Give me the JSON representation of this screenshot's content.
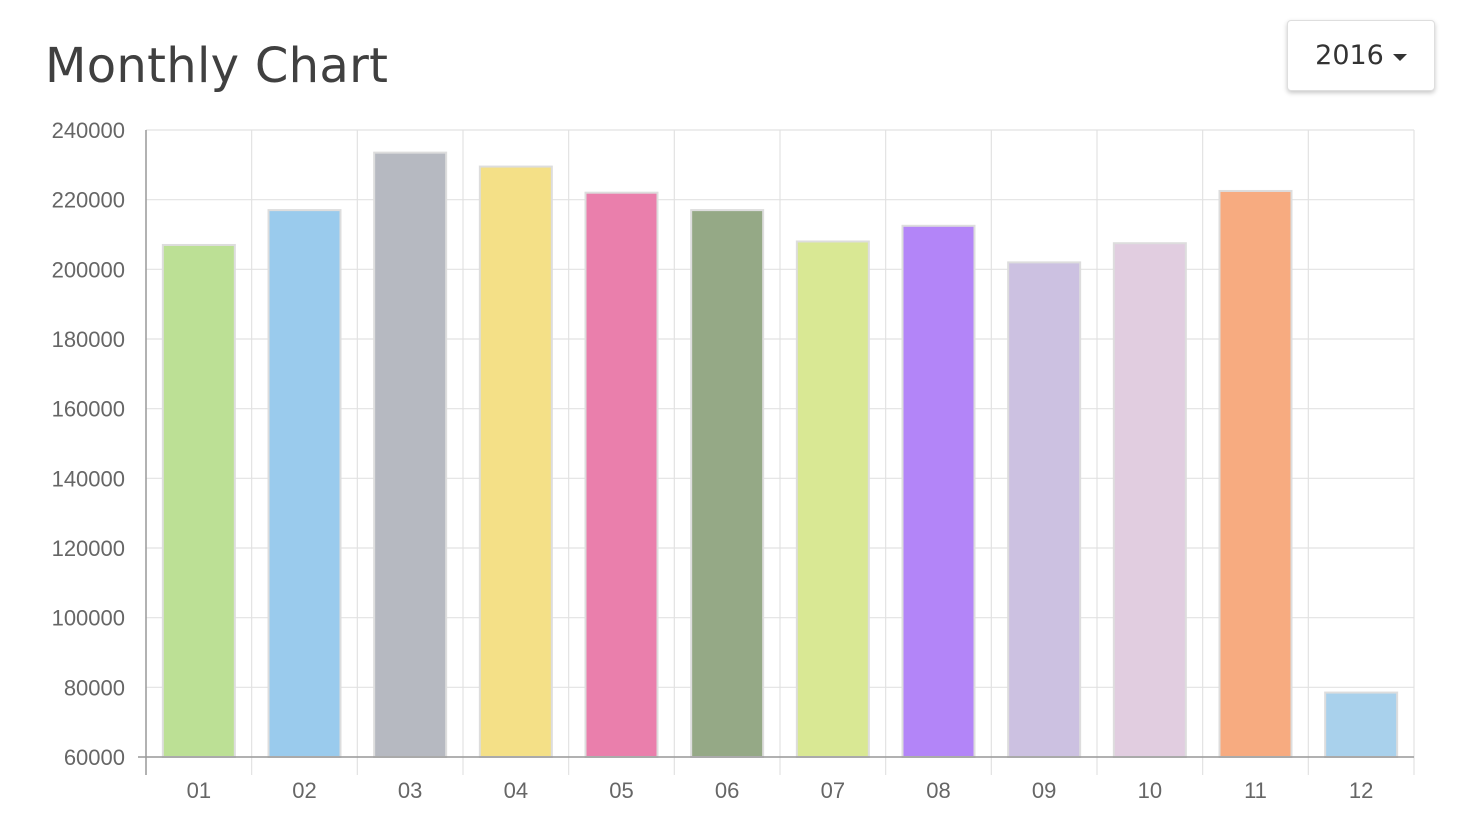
{
  "page": {
    "title": "Monthly Chart"
  },
  "year_select": {
    "selected": "2016"
  },
  "chart_data": {
    "type": "bar",
    "title": "",
    "xlabel": "",
    "ylabel": "",
    "categories": [
      "01",
      "02",
      "03",
      "04",
      "05",
      "06",
      "07",
      "08",
      "09",
      "10",
      "11",
      "12"
    ],
    "values": [
      207000,
      217000,
      233500,
      229500,
      222000,
      217000,
      208000,
      212500,
      202000,
      207500,
      222500,
      78500
    ],
    "ylim": [
      60000,
      240000
    ],
    "yticks": [
      60000,
      80000,
      100000,
      120000,
      140000,
      160000,
      180000,
      200000,
      220000,
      240000
    ],
    "grid": true,
    "legend": "none",
    "colors": [
      "#bce095",
      "#9acbed",
      "#b6b9c1",
      "#f4e087",
      "#ea7fac",
      "#95a986",
      "#d9e894",
      "#b385f8",
      "#ccc1e1",
      "#e1cde0",
      "#f7ab80",
      "#a9d1ec"
    ],
    "bar_border_color": "#dddddd",
    "grid_color": "#e2e2e2",
    "axis_color": "#999999"
  }
}
